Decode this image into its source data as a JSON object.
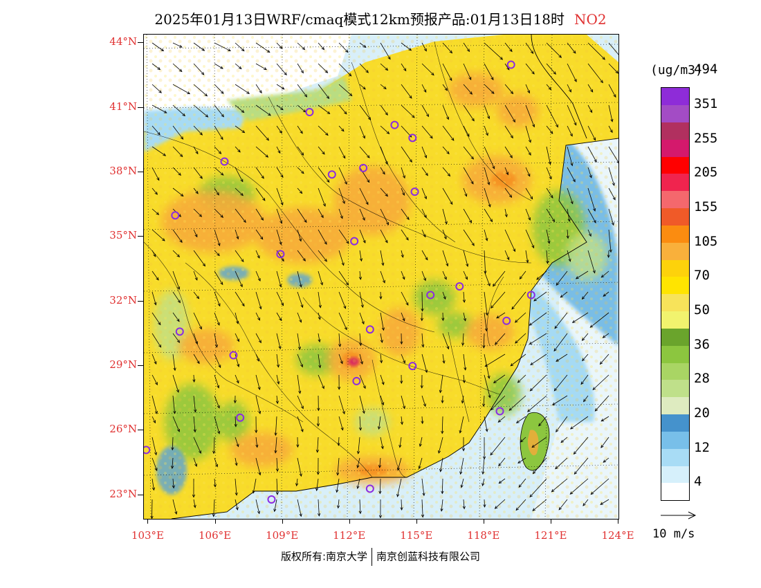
{
  "title": {
    "text": "2025年01月13日WRF/cmaq模式12km预报产品:01月13日18时",
    "species": "NO2",
    "species_color": "#e03131"
  },
  "map": {
    "lat_labels": [
      "44°N",
      "41°N",
      "38°N",
      "35°N",
      "32°N",
      "29°N",
      "26°N",
      "23°N"
    ],
    "lon_labels": [
      "103°E",
      "106°E",
      "109°E",
      "112°E",
      "115°E",
      "118°E",
      "121°E",
      "124°E"
    ],
    "label_color": "#e03131",
    "marker_color": "#8a2be2",
    "extent": {
      "lon_min": 102.8,
      "lon_max": 124.0,
      "lat_min": 21.9,
      "lat_max": 44.4
    },
    "city_markers": [
      {
        "lon": 119.2,
        "lat": 43.0
      },
      {
        "lon": 110.2,
        "lat": 40.8
      },
      {
        "lon": 114.0,
        "lat": 40.2
      },
      {
        "lon": 114.8,
        "lat": 39.6
      },
      {
        "lon": 106.4,
        "lat": 38.5
      },
      {
        "lon": 111.2,
        "lat": 37.9
      },
      {
        "lon": 112.6,
        "lat": 38.2
      },
      {
        "lon": 114.9,
        "lat": 37.1
      },
      {
        "lon": 104.2,
        "lat": 36.0
      },
      {
        "lon": 112.2,
        "lat": 34.8
      },
      {
        "lon": 108.9,
        "lat": 34.2
      },
      {
        "lon": 115.6,
        "lat": 32.3
      },
      {
        "lon": 116.9,
        "lat": 32.7
      },
      {
        "lon": 120.1,
        "lat": 32.3
      },
      {
        "lon": 119.0,
        "lat": 31.1
      },
      {
        "lon": 104.4,
        "lat": 30.6
      },
      {
        "lon": 112.9,
        "lat": 30.7
      },
      {
        "lon": 106.8,
        "lat": 29.5
      },
      {
        "lon": 114.8,
        "lat": 29.0
      },
      {
        "lon": 112.3,
        "lat": 28.3
      },
      {
        "lon": 107.1,
        "lat": 26.6
      },
      {
        "lon": 118.7,
        "lat": 26.9
      },
      {
        "lon": 102.9,
        "lat": 25.1
      },
      {
        "lon": 108.5,
        "lat": 22.8
      },
      {
        "lon": 112.9,
        "lat": 23.3
      }
    ]
  },
  "colorbar": {
    "unit": "(ug/m3)",
    "colors": [
      "#ffffff",
      "#d6f0fb",
      "#a8dcf5",
      "#78bfe9",
      "#4592cc",
      "#deebc0",
      "#bfe08a",
      "#a9d564",
      "#8cc63f",
      "#6aa42c",
      "#f1f36e",
      "#f7e35a",
      "#ffe400",
      "#fdd20b",
      "#f9b03b",
      "#fb8c10",
      "#f05a28",
      "#f4686d",
      "#f0244e",
      "#ff0000",
      "#d4196c",
      "#b1305f",
      "#a34cc5",
      "#8e2cd8"
    ],
    "labels": [
      "4",
      "12",
      "20",
      "28",
      "36",
      "50",
      "70",
      "105",
      "155",
      "205",
      "255",
      "351",
      "494"
    ]
  },
  "wind_reference": {
    "label": "10 m/s"
  },
  "copyright": {
    "left": "版权所有:南京大学",
    "right": "南京创蓝科技有限公司"
  }
}
